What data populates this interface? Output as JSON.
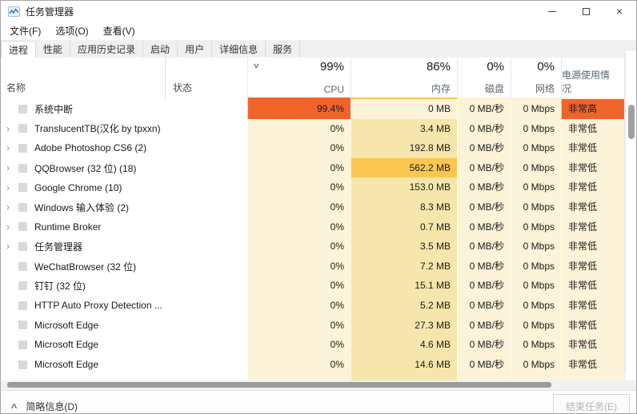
{
  "window": {
    "title": "任务管理器"
  },
  "menu": {
    "items": [
      "文件(F)",
      "选项(O)",
      "查看(V)"
    ]
  },
  "tabs": {
    "items": [
      "进程",
      "性能",
      "应用历史记录",
      "启动",
      "用户",
      "详细信息",
      "服务"
    ],
    "active_index": 0
  },
  "table": {
    "name_header": "名称",
    "status_header": "状态",
    "sort_chevron": "∨",
    "columns": [
      {
        "key": "cpu",
        "percent": "99%",
        "label": "CPU",
        "underline": "#f0642c"
      },
      {
        "key": "memory",
        "percent": "86%",
        "label": "内存",
        "underline": "#fbc751"
      },
      {
        "key": "disk",
        "percent": "0%",
        "label": "磁盘",
        "underline": "#fdf3d8"
      },
      {
        "key": "network",
        "percent": "0%",
        "label": "网络",
        "underline": "#fdf3d8"
      },
      {
        "key": "power",
        "percent": "",
        "label": "电源使用情况",
        "underline": "#fdf3d8"
      }
    ],
    "rows": [
      {
        "name": "系统中断",
        "expandable": false,
        "status": "",
        "cpu": "99.4%",
        "memory": "0 MB",
        "disk": "0 MB/秒",
        "network": "0 Mbps",
        "power": "非常高",
        "cpu_hot": true,
        "mem_level": 0,
        "power_hot": true
      },
      {
        "name": "TranslucentTB(汉化 by tpxxn)",
        "expandable": true,
        "status": "",
        "cpu": "0%",
        "memory": "3.4 MB",
        "disk": "0 MB/秒",
        "network": "0 Mbps",
        "power": "非常低",
        "cpu_hot": false,
        "mem_level": 1,
        "power_hot": false
      },
      {
        "name": "Adobe Photoshop CS6 (2)",
        "expandable": true,
        "status": "",
        "cpu": "0%",
        "memory": "192.8 MB",
        "disk": "0 MB/秒",
        "network": "0 Mbps",
        "power": "非常低",
        "cpu_hot": false,
        "mem_level": 1,
        "power_hot": false
      },
      {
        "name": "QQBrowser (32 位) (18)",
        "expandable": true,
        "status": "",
        "cpu": "0%",
        "memory": "562.2 MB",
        "disk": "0 MB/秒",
        "network": "0 Mbps",
        "power": "非常低",
        "cpu_hot": false,
        "mem_level": 2,
        "power_hot": false
      },
      {
        "name": "Google Chrome (10)",
        "expandable": true,
        "status": "",
        "cpu": "0%",
        "memory": "153.0 MB",
        "disk": "0 MB/秒",
        "network": "0 Mbps",
        "power": "非常低",
        "cpu_hot": false,
        "mem_level": 1,
        "power_hot": false
      },
      {
        "name": "Windows 输入体验 (2)",
        "expandable": true,
        "status": "",
        "cpu": "0%",
        "memory": "8.3 MB",
        "disk": "0 MB/秒",
        "network": "0 Mbps",
        "power": "非常低",
        "cpu_hot": false,
        "mem_level": 1,
        "power_hot": false
      },
      {
        "name": "Runtime Broker",
        "expandable": true,
        "status": "",
        "cpu": "0%",
        "memory": "0.7 MB",
        "disk": "0 MB/秒",
        "network": "0 Mbps",
        "power": "非常低",
        "cpu_hot": false,
        "mem_level": 1,
        "power_hot": false
      },
      {
        "name": "任务管理器",
        "expandable": true,
        "status": "",
        "cpu": "0%",
        "memory": "3.5 MB",
        "disk": "0 MB/秒",
        "network": "0 Mbps",
        "power": "非常低",
        "cpu_hot": false,
        "mem_level": 1,
        "power_hot": false
      },
      {
        "name": "WeChatBrowser (32 位)",
        "expandable": false,
        "status": "",
        "cpu": "0%",
        "memory": "7.2 MB",
        "disk": "0 MB/秒",
        "network": "0 Mbps",
        "power": "非常低",
        "cpu_hot": false,
        "mem_level": 1,
        "power_hot": false
      },
      {
        "name": "钉钉 (32 位)",
        "expandable": false,
        "status": "",
        "cpu": "0%",
        "memory": "15.1 MB",
        "disk": "0 MB/秒",
        "network": "0 Mbps",
        "power": "非常低",
        "cpu_hot": false,
        "mem_level": 1,
        "power_hot": false
      },
      {
        "name": "HTTP Auto Proxy Detection ...",
        "expandable": false,
        "status": "",
        "cpu": "0%",
        "memory": "5.2 MB",
        "disk": "0 MB/秒",
        "network": "0 Mbps",
        "power": "非常低",
        "cpu_hot": false,
        "mem_level": 1,
        "power_hot": false
      },
      {
        "name": "Microsoft Edge",
        "expandable": false,
        "status": "",
        "cpu": "0%",
        "memory": "27.3 MB",
        "disk": "0 MB/秒",
        "network": "0 Mbps",
        "power": "非常低",
        "cpu_hot": false,
        "mem_level": 1,
        "power_hot": false
      },
      {
        "name": "Microsoft Edge",
        "expandable": false,
        "status": "",
        "cpu": "0%",
        "memory": "4.6 MB",
        "disk": "0 MB/秒",
        "network": "0 Mbps",
        "power": "非常低",
        "cpu_hot": false,
        "mem_level": 1,
        "power_hot": false
      },
      {
        "name": "Microsoft Edge",
        "expandable": false,
        "status": "",
        "cpu": "0%",
        "memory": "14.6 MB",
        "disk": "0 MB/秒",
        "network": "0 Mbps",
        "power": "非常低",
        "cpu_hot": false,
        "mem_level": 1,
        "power_hot": false
      },
      {
        "name": "",
        "expandable": false,
        "status": "",
        "cpu": "",
        "memory": "",
        "disk": "",
        "network": "",
        "power": "",
        "cpu_hot": false,
        "mem_level": 1,
        "power_hot": false
      }
    ]
  },
  "footer": {
    "toggle_label": "简略信息(D)",
    "end_task_label": "结束任务(E)"
  },
  "colors": {
    "hot_orange": "#f0642c",
    "heat_pale": "#fdf3d8",
    "heat_mem": "#f7e6ab",
    "heat_mem_high": "#fbc751",
    "header_label": "#5b6770"
  }
}
